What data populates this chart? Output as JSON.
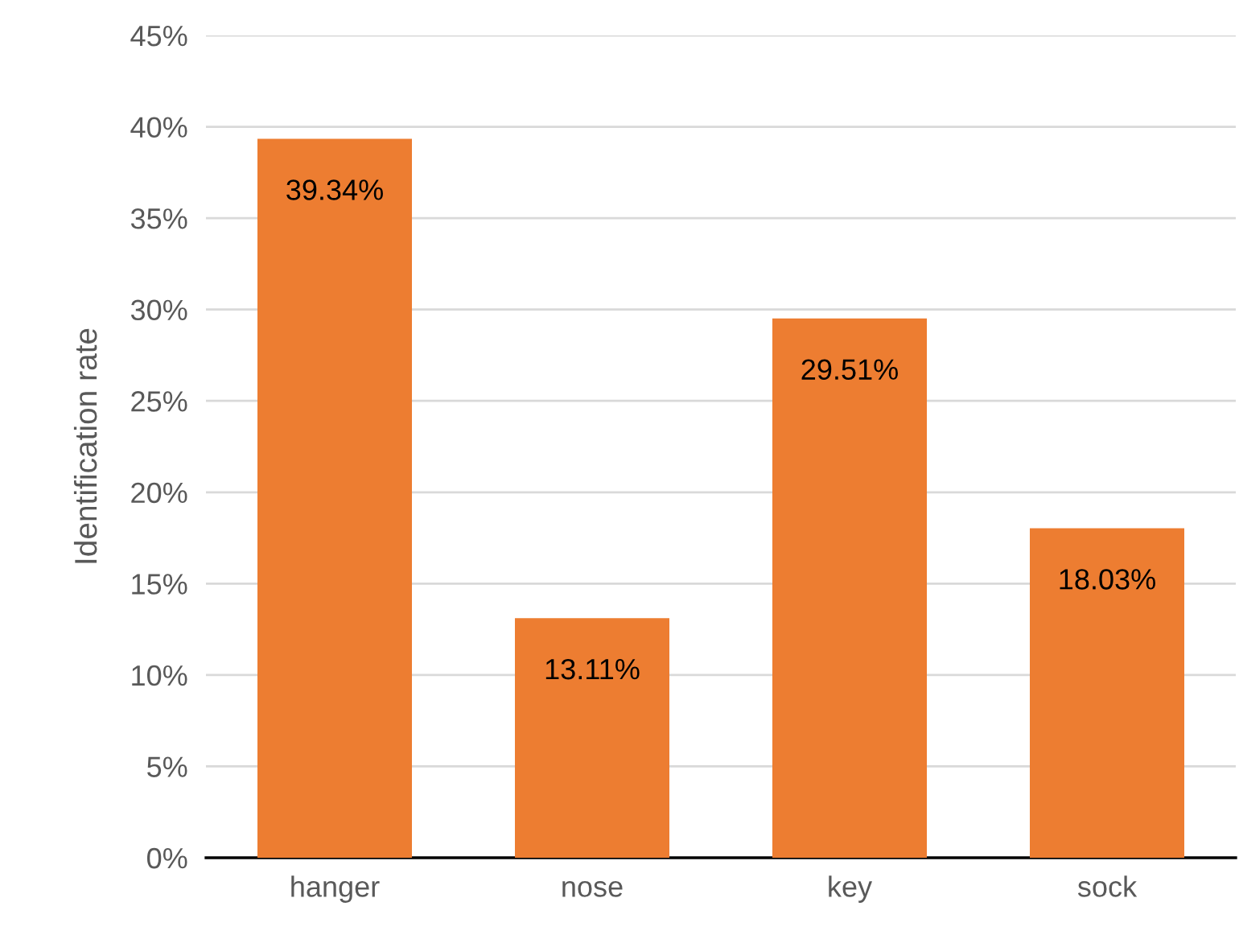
{
  "chart_data": {
    "type": "bar",
    "ylabel": "Identification rate",
    "categories": [
      "hanger",
      "nose",
      "key",
      "sock"
    ],
    "values": [
      39.34,
      13.11,
      29.51,
      18.03
    ],
    "value_labels": [
      "39.34%",
      "13.11%",
      "29.51%",
      "18.03%"
    ],
    "color": "#ed7d31",
    "ylim": [
      0,
      45
    ],
    "yticks": [
      {
        "value": 0,
        "label": "0%"
      },
      {
        "value": 5,
        "label": "5%"
      },
      {
        "value": 10,
        "label": "10%"
      },
      {
        "value": 15,
        "label": "15%"
      },
      {
        "value": 20,
        "label": "20%"
      },
      {
        "value": 25,
        "label": "25%"
      },
      {
        "value": 30,
        "label": "30%"
      },
      {
        "value": 35,
        "label": "35%"
      },
      {
        "value": 40,
        "label": "40%"
      },
      {
        "value": 45,
        "label": "45%"
      }
    ],
    "grid": "y",
    "legend": false
  }
}
